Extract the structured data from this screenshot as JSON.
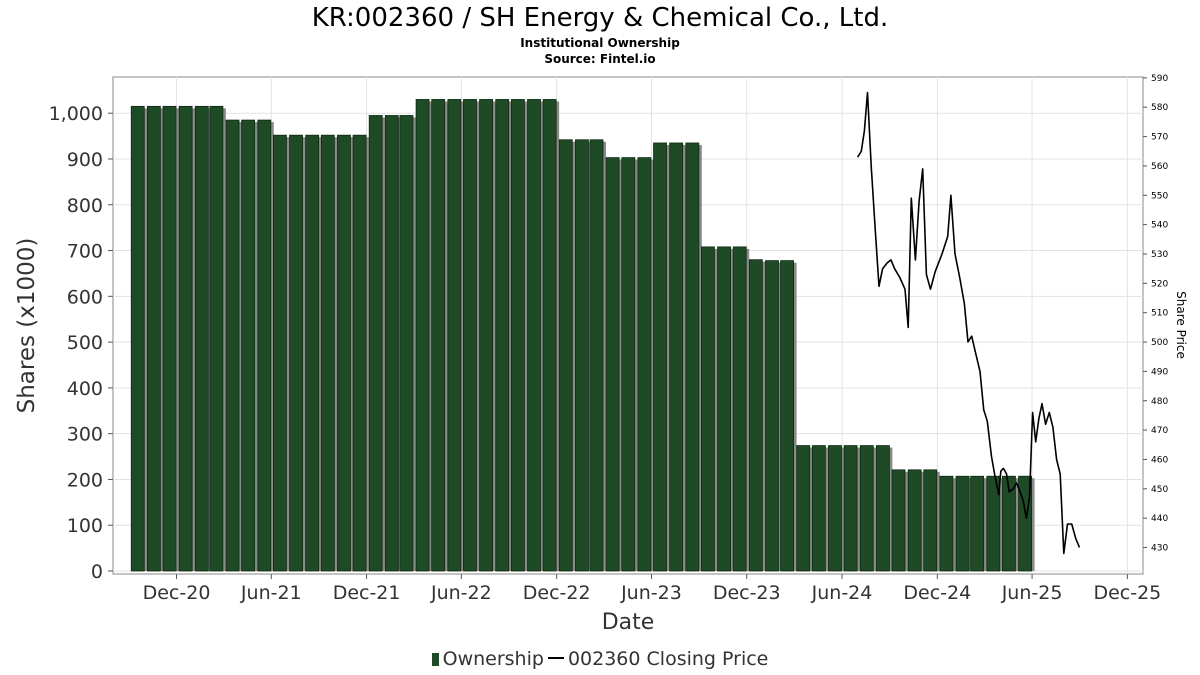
{
  "chart_data": {
    "type": "bar",
    "title": "KR:002360 / SH Energy & Chemical Co., Ltd.",
    "subtitle": "Institutional Ownership",
    "source": "Source: Fintel.io",
    "xlabel": "Date",
    "ylabel": "Shares (x1000)",
    "y2label": "Share Price",
    "ylim": [
      0,
      1090
    ],
    "y2lim": [
      422,
      592
    ],
    "xlim": [
      "2020-08-01",
      "2025-12-31"
    ],
    "grid": true,
    "legend_position": "bottom",
    "y_ticks": [
      "0",
      "100",
      "200",
      "300",
      "400",
      "500",
      "600",
      "700",
      "800",
      "900",
      "1,000"
    ],
    "y2_ticks": [
      "430",
      "440",
      "450",
      "460",
      "470",
      "480",
      "490",
      "500",
      "510",
      "520",
      "530",
      "540",
      "550",
      "560",
      "570",
      "580",
      "590"
    ],
    "x_ticks": [
      {
        "date": "2020-12-01",
        "label": "Dec-20"
      },
      {
        "date": "2021-06-01",
        "label": "Jun-21"
      },
      {
        "date": "2021-12-01",
        "label": "Dec-21"
      },
      {
        "date": "2022-06-01",
        "label": "Jun-22"
      },
      {
        "date": "2022-12-01",
        "label": "Dec-22"
      },
      {
        "date": "2023-06-01",
        "label": "Jun-23"
      },
      {
        "date": "2023-12-01",
        "label": "Dec-23"
      },
      {
        "date": "2024-06-01",
        "label": "Jun-24"
      },
      {
        "date": "2024-12-01",
        "label": "Dec-24"
      },
      {
        "date": "2025-06-01",
        "label": "Jun-25"
      },
      {
        "date": "2025-12-01",
        "label": "Dec-25"
      }
    ],
    "series": [
      {
        "name": "Ownership",
        "type": "bar",
        "color": "#1e4a26",
        "points": [
          {
            "date": "2020-09-30",
            "value": 1015
          },
          {
            "date": "2020-10-31",
            "value": 1015
          },
          {
            "date": "2020-11-30",
            "value": 1015
          },
          {
            "date": "2020-12-31",
            "value": 1015
          },
          {
            "date": "2021-01-31",
            "value": 1015
          },
          {
            "date": "2021-02-28",
            "value": 1015
          },
          {
            "date": "2021-03-31",
            "value": 985
          },
          {
            "date": "2021-04-30",
            "value": 985
          },
          {
            "date": "2021-05-31",
            "value": 985
          },
          {
            "date": "2021-06-30",
            "value": 952
          },
          {
            "date": "2021-07-31",
            "value": 952
          },
          {
            "date": "2021-08-31",
            "value": 952
          },
          {
            "date": "2021-09-30",
            "value": 952
          },
          {
            "date": "2021-10-31",
            "value": 952
          },
          {
            "date": "2021-11-30",
            "value": 952
          },
          {
            "date": "2021-12-31",
            "value": 995
          },
          {
            "date": "2022-01-31",
            "value": 995
          },
          {
            "date": "2022-02-28",
            "value": 995
          },
          {
            "date": "2022-03-31",
            "value": 1030
          },
          {
            "date": "2022-04-30",
            "value": 1030
          },
          {
            "date": "2022-05-31",
            "value": 1030
          },
          {
            "date": "2022-06-30",
            "value": 1030
          },
          {
            "date": "2022-07-31",
            "value": 1030
          },
          {
            "date": "2022-08-31",
            "value": 1030
          },
          {
            "date": "2022-09-30",
            "value": 1030
          },
          {
            "date": "2022-10-31",
            "value": 1030
          },
          {
            "date": "2022-11-30",
            "value": 1030
          },
          {
            "date": "2022-12-31",
            "value": 942
          },
          {
            "date": "2023-01-31",
            "value": 942
          },
          {
            "date": "2023-02-28",
            "value": 942
          },
          {
            "date": "2023-03-31",
            "value": 903
          },
          {
            "date": "2023-04-30",
            "value": 903
          },
          {
            "date": "2023-05-31",
            "value": 903
          },
          {
            "date": "2023-06-30",
            "value": 935
          },
          {
            "date": "2023-07-31",
            "value": 935
          },
          {
            "date": "2023-08-31",
            "value": 935
          },
          {
            "date": "2023-09-30",
            "value": 708
          },
          {
            "date": "2023-10-31",
            "value": 708
          },
          {
            "date": "2023-11-30",
            "value": 708
          },
          {
            "date": "2023-12-31",
            "value": 680
          },
          {
            "date": "2024-01-31",
            "value": 678
          },
          {
            "date": "2024-02-29",
            "value": 678
          },
          {
            "date": "2024-03-31",
            "value": 274
          },
          {
            "date": "2024-04-30",
            "value": 274
          },
          {
            "date": "2024-05-31",
            "value": 274
          },
          {
            "date": "2024-06-30",
            "value": 274
          },
          {
            "date": "2024-07-31",
            "value": 274
          },
          {
            "date": "2024-08-31",
            "value": 274
          },
          {
            "date": "2024-09-30",
            "value": 221
          },
          {
            "date": "2024-10-31",
            "value": 221
          },
          {
            "date": "2024-11-30",
            "value": 221
          },
          {
            "date": "2024-12-31",
            "value": 207
          },
          {
            "date": "2025-01-31",
            "value": 207
          },
          {
            "date": "2025-02-28",
            "value": 207
          },
          {
            "date": "2025-03-31",
            "value": 207
          },
          {
            "date": "2025-04-30",
            "value": 207
          },
          {
            "date": "2025-05-31",
            "value": 207
          }
        ]
      },
      {
        "name": "002360 Closing Price",
        "type": "line",
        "color": "#000000",
        "points": [
          {
            "date": "2024-07-01",
            "value": 563
          },
          {
            "date": "2024-07-08",
            "value": 565
          },
          {
            "date": "2024-07-14",
            "value": 572
          },
          {
            "date": "2024-07-20",
            "value": 585
          },
          {
            "date": "2024-07-27",
            "value": 560
          },
          {
            "date": "2024-08-04",
            "value": 538
          },
          {
            "date": "2024-08-11",
            "value": 519
          },
          {
            "date": "2024-08-18",
            "value": 525
          },
          {
            "date": "2024-08-27",
            "value": 527
          },
          {
            "date": "2024-09-03",
            "value": 528
          },
          {
            "date": "2024-09-10",
            "value": 525
          },
          {
            "date": "2024-09-20",
            "value": 522
          },
          {
            "date": "2024-09-30",
            "value": 518
          },
          {
            "date": "2024-10-06",
            "value": 505
          },
          {
            "date": "2024-10-12",
            "value": 549
          },
          {
            "date": "2024-10-20",
            "value": 528
          },
          {
            "date": "2024-10-27",
            "value": 548
          },
          {
            "date": "2024-11-03",
            "value": 559
          },
          {
            "date": "2024-11-10",
            "value": 523
          },
          {
            "date": "2024-11-18",
            "value": 518
          },
          {
            "date": "2024-11-27",
            "value": 524
          },
          {
            "date": "2024-12-10",
            "value": 530
          },
          {
            "date": "2024-12-21",
            "value": 536
          },
          {
            "date": "2024-12-27",
            "value": 550
          },
          {
            "date": "2025-01-04",
            "value": 530
          },
          {
            "date": "2025-01-13",
            "value": 522
          },
          {
            "date": "2025-01-22",
            "value": 513
          },
          {
            "date": "2025-01-29",
            "value": 500
          },
          {
            "date": "2025-02-05",
            "value": 502
          },
          {
            "date": "2025-02-13",
            "value": 496
          },
          {
            "date": "2025-02-21",
            "value": 490
          },
          {
            "date": "2025-02-28",
            "value": 477
          },
          {
            "date": "2025-03-07",
            "value": 473
          },
          {
            "date": "2025-03-15",
            "value": 461
          },
          {
            "date": "2025-03-21",
            "value": 455
          },
          {
            "date": "2025-03-29",
            "value": 448
          },
          {
            "date": "2025-04-02",
            "value": 456
          },
          {
            "date": "2025-04-07",
            "value": 457
          },
          {
            "date": "2025-04-13",
            "value": 455
          },
          {
            "date": "2025-04-18",
            "value": 449
          },
          {
            "date": "2025-04-26",
            "value": 450
          },
          {
            "date": "2025-05-02",
            "value": 452
          },
          {
            "date": "2025-05-09",
            "value": 449
          },
          {
            "date": "2025-05-15",
            "value": 446
          },
          {
            "date": "2025-05-21",
            "value": 440
          },
          {
            "date": "2025-05-27",
            "value": 447
          },
          {
            "date": "2025-06-02",
            "value": 476
          },
          {
            "date": "2025-06-08",
            "value": 466
          },
          {
            "date": "2025-06-14",
            "value": 474
          },
          {
            "date": "2025-06-20",
            "value": 479
          },
          {
            "date": "2025-06-27",
            "value": 472
          },
          {
            "date": "2025-07-04",
            "value": 476
          },
          {
            "date": "2025-07-11",
            "value": 471
          },
          {
            "date": "2025-07-18",
            "value": 460
          },
          {
            "date": "2025-07-25",
            "value": 455
          },
          {
            "date": "2025-08-01",
            "value": 428
          },
          {
            "date": "2025-08-08",
            "value": 438
          },
          {
            "date": "2025-08-16",
            "value": 438
          },
          {
            "date": "2025-08-24",
            "value": 433
          },
          {
            "date": "2025-08-31",
            "value": 430
          }
        ]
      }
    ]
  }
}
